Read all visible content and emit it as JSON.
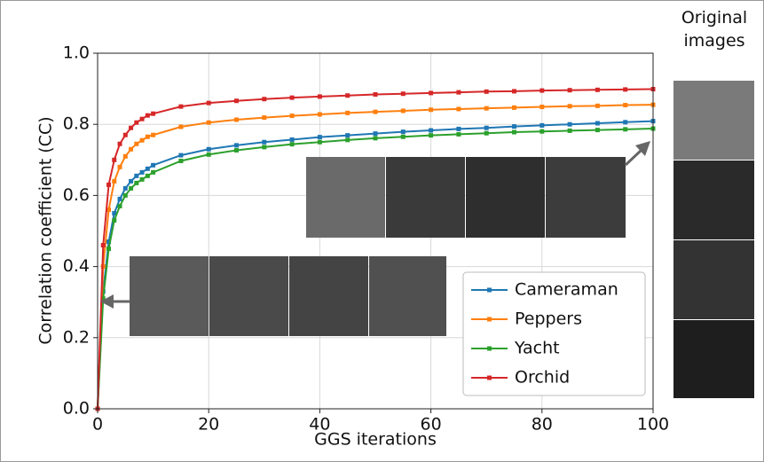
{
  "chart_data": {
    "type": "line",
    "xlabel": "GGS iterations",
    "ylabel": "Correlation coefficient (CC)",
    "annotation": "Original images",
    "x": [
      0,
      1,
      2,
      3,
      4,
      5,
      6,
      7,
      8,
      9,
      10,
      15,
      20,
      25,
      30,
      35,
      40,
      45,
      50,
      55,
      60,
      65,
      70,
      75,
      80,
      85,
      90,
      95,
      100
    ],
    "series": [
      {
        "name": "Cameraman",
        "color": "#1f77b4",
        "values": [
          0,
          0.33,
          0.47,
          0.55,
          0.59,
          0.62,
          0.64,
          0.655,
          0.665,
          0.675,
          0.685,
          0.713,
          0.73,
          0.741,
          0.75,
          0.757,
          0.764,
          0.769,
          0.774,
          0.779,
          0.783,
          0.787,
          0.79,
          0.794,
          0.797,
          0.8,
          0.803,
          0.806,
          0.809
        ]
      },
      {
        "name": "Peppers",
        "color": "#ff7f0e",
        "values": [
          0,
          0.4,
          0.56,
          0.64,
          0.68,
          0.71,
          0.73,
          0.745,
          0.755,
          0.765,
          0.77,
          0.793,
          0.805,
          0.813,
          0.819,
          0.824,
          0.828,
          0.832,
          0.835,
          0.838,
          0.841,
          0.843,
          0.845,
          0.847,
          0.849,
          0.851,
          0.852,
          0.854,
          0.855
        ]
      },
      {
        "name": "Yacht",
        "color": "#2ca02c",
        "values": [
          0,
          0.31,
          0.45,
          0.53,
          0.57,
          0.6,
          0.62,
          0.635,
          0.645,
          0.655,
          0.665,
          0.697,
          0.715,
          0.727,
          0.736,
          0.744,
          0.75,
          0.756,
          0.761,
          0.765,
          0.769,
          0.772,
          0.775,
          0.778,
          0.78,
          0.782,
          0.784,
          0.786,
          0.788
        ]
      },
      {
        "name": "Orchid",
        "color": "#d62728",
        "values": [
          0,
          0.46,
          0.63,
          0.7,
          0.745,
          0.77,
          0.79,
          0.805,
          0.815,
          0.825,
          0.83,
          0.85,
          0.86,
          0.866,
          0.871,
          0.875,
          0.878,
          0.881,
          0.884,
          0.886,
          0.888,
          0.89,
          0.892,
          0.893,
          0.895,
          0.896,
          0.897,
          0.898,
          0.899
        ]
      }
    ],
    "xlim": [
      0,
      100
    ],
    "xticks": [
      0,
      20,
      40,
      60,
      80,
      100
    ],
    "ylim": [
      0,
      1
    ],
    "yticks": [
      {
        "value": 0,
        "label": "0.0"
      },
      0.2,
      0.4,
      0.6,
      0.8,
      {
        "value": 1,
        "label": "1.0"
      }
    ],
    "grid": true,
    "legend": "lower right"
  }
}
